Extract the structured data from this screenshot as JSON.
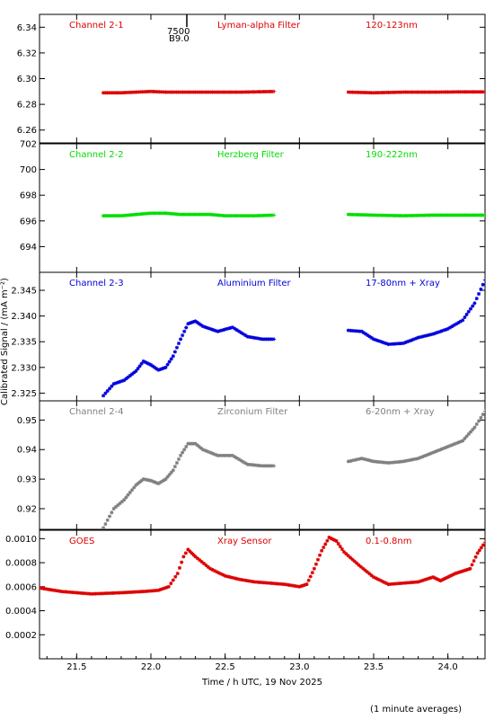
{
  "chart_data": {
    "type": "scatter",
    "xlabel": "Time / h UTC, 19 Nov 2025",
    "ylabel": "Calibrated Signal / (mA m⁻²)",
    "footnote": "(1 minute averages)",
    "xlim": [
      21.25,
      24.25
    ],
    "x_ticks": [
      "21.5",
      "22.0",
      "22.5",
      "23.0",
      "23.5",
      "24.0"
    ],
    "top_annotation": [
      "7500",
      "B9.0"
    ],
    "panels": [
      {
        "name": "Channel 2-1",
        "filter": "Lyman-alpha Filter",
        "band": "120-123nm",
        "color": "#dd0000",
        "ylim": [
          6.25,
          6.35
        ],
        "y_ticks": [
          "6.26",
          "6.28",
          "6.30",
          "6.32",
          "6.34"
        ],
        "segments": [
          {
            "x": [
              21.68,
              21.8,
              21.9,
              22.0,
              22.1,
              22.2,
              22.3,
              22.4,
              22.5,
              22.6,
              22.7,
              22.83
            ],
            "y": [
              6.289,
              6.289,
              6.2895,
              6.29,
              6.2895,
              6.2895,
              6.2895,
              6.2895,
              6.2895,
              6.2895,
              6.2897,
              6.29
            ]
          },
          {
            "x": [
              23.33,
              23.5,
              23.7,
              23.9,
              24.1,
              24.25
            ],
            "y": [
              6.2895,
              6.289,
              6.2895,
              6.2895,
              6.2897,
              6.2897
            ]
          }
        ]
      },
      {
        "name": "Channel 2-2",
        "filter": "Herzberg Filter",
        "band": "190-222nm",
        "color": "#00dd00",
        "ylim": [
          692,
          702
        ],
        "y_ticks": [
          "694",
          "696",
          "698",
          "700",
          "702"
        ],
        "segments": [
          {
            "x": [
              21.68,
              21.8,
              21.9,
              22.0,
              22.1,
              22.2,
              22.3,
              22.4,
              22.5,
              22.6,
              22.7,
              22.83
            ],
            "y": [
              696.4,
              696.4,
              696.5,
              696.6,
              696.6,
              696.5,
              696.5,
              696.5,
              696.4,
              696.4,
              696.4,
              696.45
            ]
          },
          {
            "x": [
              23.33,
              23.5,
              23.7,
              23.9,
              24.1,
              24.25
            ],
            "y": [
              696.5,
              696.45,
              696.4,
              696.45,
              696.45,
              696.45
            ]
          }
        ]
      },
      {
        "name": "Channel 2-3",
        "filter": "Aluminium Filter",
        "band": "17-80nm + Xray",
        "color": "#0000dd",
        "ylim": [
          2.3235,
          2.3485
        ],
        "y_ticks": [
          "2.325",
          "2.330",
          "2.335",
          "2.340",
          "2.345"
        ],
        "segments": [
          {
            "x": [
              21.68,
              21.75,
              21.82,
              21.9,
              21.95,
              22.0,
              22.05,
              22.1,
              22.15,
              22.2,
              22.25,
              22.3,
              22.35,
              22.45,
              22.55,
              22.65,
              22.75,
              22.83
            ],
            "y": [
              2.3245,
              2.3268,
              2.3275,
              2.3293,
              2.3312,
              2.3305,
              2.3295,
              2.33,
              2.3322,
              2.3355,
              2.3385,
              2.339,
              2.338,
              2.337,
              2.3378,
              2.336,
              2.3355,
              2.3355
            ]
          },
          {
            "x": [
              23.33,
              23.42,
              23.5,
              23.6,
              23.7,
              23.8,
              23.9,
              24.0,
              24.1,
              24.18,
              24.25
            ],
            "y": [
              2.3372,
              2.337,
              2.3355,
              2.3345,
              2.3347,
              2.3358,
              2.3365,
              2.3375,
              2.3392,
              2.3425,
              2.347
            ]
          }
        ]
      },
      {
        "name": "Channel 2-4",
        "filter": "Zirconium Filter",
        "band": "6-20nm + Xray",
        "color": "#808080",
        "ylim": [
          0.913,
          0.9565
        ],
        "y_ticks": [
          "0.92",
          "0.93",
          "0.94",
          "0.95"
        ],
        "segments": [
          {
            "x": [
              21.68,
              21.75,
              21.82,
              21.9,
              21.95,
              22.0,
              22.05,
              22.1,
              22.15,
              22.2,
              22.25,
              22.3,
              22.35,
              22.45,
              22.55,
              22.65,
              22.75,
              22.83
            ],
            "y": [
              0.9135,
              0.92,
              0.923,
              0.928,
              0.93,
              0.9295,
              0.9285,
              0.93,
              0.933,
              0.938,
              0.942,
              0.942,
              0.94,
              0.938,
              0.938,
              0.935,
              0.9345,
              0.9345
            ]
          },
          {
            "x": [
              23.33,
              23.42,
              23.5,
              23.6,
              23.7,
              23.8,
              23.9,
              24.0,
              24.1,
              24.18,
              24.25
            ],
            "y": [
              0.936,
              0.937,
              0.936,
              0.9355,
              0.936,
              0.937,
              0.939,
              0.941,
              0.943,
              0.9475,
              0.953
            ]
          }
        ]
      },
      {
        "name": "GOES",
        "filter": "Xray Sensor",
        "band": "0.1-0.8nm",
        "color": "#dd0000",
        "ylim": [
          0.0,
          0.00107
        ],
        "y_ticks": [
          "0.0002",
          "0.0004",
          "0.0006",
          "0.0008",
          "0.0010"
        ],
        "segments": [
          {
            "x": [
              21.25,
              21.4,
              21.6,
              21.8,
              21.95,
              22.05,
              22.12,
              22.18,
              22.22,
              22.25,
              22.3,
              22.4,
              22.5,
              22.6,
              22.7,
              22.8,
              22.9,
              23.0,
              23.05,
              23.1,
              23.15,
              23.2,
              23.25,
              23.3,
              23.4,
              23.5,
              23.6,
              23.7,
              23.8,
              23.9,
              23.95,
              24.0,
              24.05,
              24.1,
              24.15,
              24.2,
              24.25
            ],
            "y": [
              0.00059,
              0.00056,
              0.00054,
              0.00055,
              0.00056,
              0.00057,
              0.0006,
              0.00071,
              0.00085,
              0.00091,
              0.00085,
              0.00075,
              0.00069,
              0.00066,
              0.00064,
              0.00063,
              0.00062,
              0.0006,
              0.00062,
              0.00075,
              0.0009,
              0.00101,
              0.00098,
              0.00089,
              0.00078,
              0.00068,
              0.00062,
              0.00063,
              0.00064,
              0.00068,
              0.00065,
              0.00068,
              0.00071,
              0.00073,
              0.00075,
              0.00088,
              0.00097
            ]
          }
        ]
      }
    ]
  }
}
